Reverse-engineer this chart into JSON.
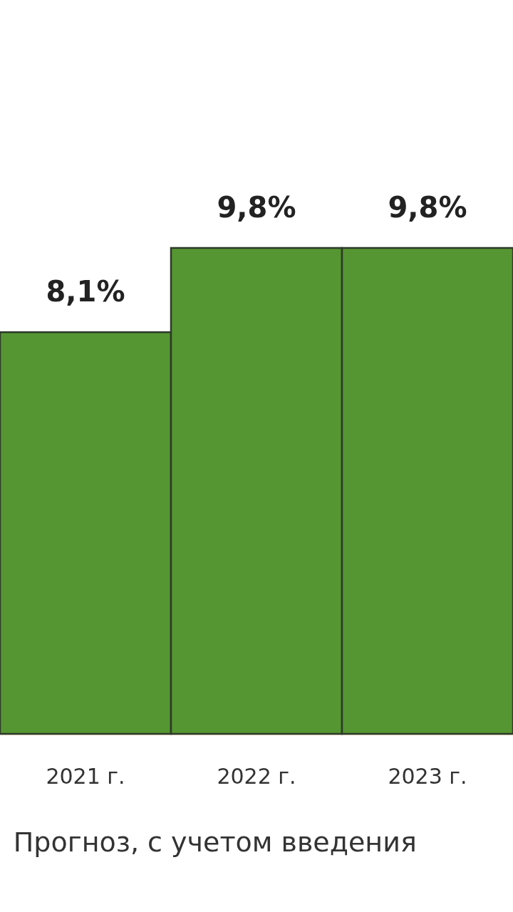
{
  "chart_data": {
    "type": "bar",
    "categories": [
      "2021 г.",
      "2022 г.",
      "2023 г."
    ],
    "values": [
      8.1,
      9.8,
      9.8
    ],
    "value_labels": [
      "8,1%",
      "9,8%",
      "9,8%"
    ],
    "color": "#559632",
    "annotations": [
      "Прогноз, с учетом введения"
    ]
  }
}
